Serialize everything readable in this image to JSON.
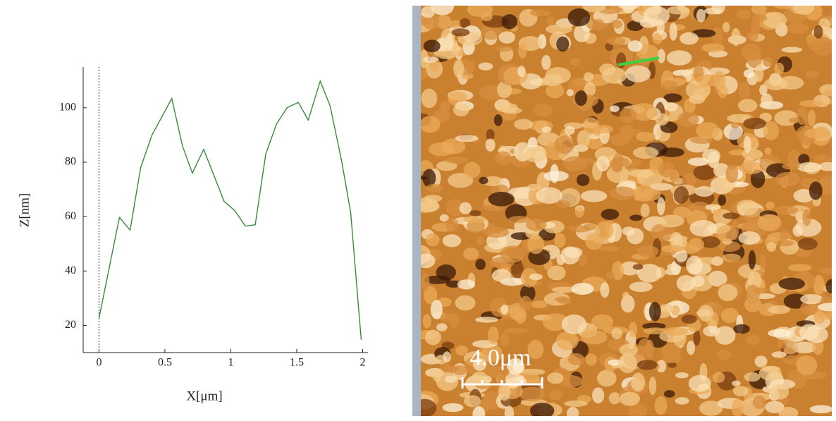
{
  "chart_data": {
    "type": "line",
    "x_label": "X[μm]",
    "y_label": "Z[nm]",
    "xlim": [
      -0.12,
      2.04
    ],
    "ylim": [
      10,
      115
    ],
    "xticks": [
      0,
      0.5,
      1,
      1.5,
      2
    ],
    "yticks": [
      20,
      40,
      60,
      80,
      100
    ],
    "series": [
      {
        "color": "#3a8a3a",
        "x": [
          0,
          0.155,
          0.236,
          0.316,
          0.402,
          0.552,
          0.633,
          0.708,
          0.794,
          0.949,
          1.03,
          1.11,
          1.185,
          1.265,
          1.346,
          1.426,
          1.512,
          1.587,
          1.678,
          1.753,
          1.839,
          1.909,
          1.989
        ],
        "values": [
          22.6,
          59.7,
          55,
          78,
          90,
          103.4,
          86,
          76,
          84.7,
          65.6,
          62.2,
          56.5,
          57,
          83,
          94,
          100,
          102,
          95.5,
          109.8,
          100.7,
          80.8,
          61.5,
          14.7
        ]
      }
    ]
  },
  "image": {
    "scale_bar": "4.0μm"
  }
}
